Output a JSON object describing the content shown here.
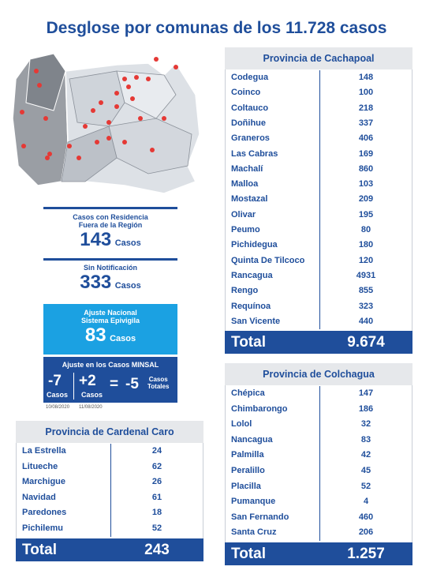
{
  "title": "Desglose por comunas de los 11.728 casos",
  "residencia": {
    "label": [
      "Casos con Residencia",
      "Fuera de la Región"
    ],
    "value": "143",
    "unit": "Casos"
  },
  "sin_notificacion": {
    "label": "Sin Notificación",
    "value": "333",
    "unit": "Casos"
  },
  "ajuste_nacional": {
    "label": [
      "Ajuste Nacional",
      "Sistema Epivigila"
    ],
    "value": "83",
    "unit": "Casos"
  },
  "ajuste_minsal": {
    "label": "Ajuste en los Casos MINSAL",
    "items": [
      {
        "value": "-7",
        "unit": "Casos"
      },
      {
        "value": "+2",
        "unit": "Casos"
      }
    ],
    "equals": "=",
    "result": {
      "value": "-5",
      "unit": [
        "Casos",
        "Totales"
      ]
    },
    "dates": [
      "10/08/2020",
      "11/08/2020"
    ]
  },
  "provinces": [
    {
      "name": "Provincia de Cachapoal",
      "rows": [
        [
          "Codegua",
          "148"
        ],
        [
          "Coinco",
          "100"
        ],
        [
          "Coltauco",
          "218"
        ],
        [
          "Doñihue",
          "337"
        ],
        [
          "Graneros",
          "406"
        ],
        [
          "Las Cabras",
          "169"
        ],
        [
          "Machalí",
          "860"
        ],
        [
          "Malloa",
          "103"
        ],
        [
          "Mostazal",
          "209"
        ],
        [
          "Olivar",
          "195"
        ],
        [
          "Peumo",
          "80"
        ],
        [
          "Pichidegua",
          "180"
        ],
        [
          "Quinta De Tilcoco",
          "120"
        ],
        [
          "Rancagua",
          "4931"
        ],
        [
          "Rengo",
          "855"
        ],
        [
          "Requínoa",
          "323"
        ],
        [
          "San Vicente",
          "440"
        ]
      ],
      "total_label": "Total",
      "total": "9.674"
    },
    {
      "name": "Provincia de Colchagua",
      "rows": [
        [
          "Chépica",
          "147"
        ],
        [
          "Chimbarongo",
          "186"
        ],
        [
          "Lolol",
          "32"
        ],
        [
          "Nancagua",
          "83"
        ],
        [
          "Palmilla",
          "42"
        ],
        [
          "Peralillo",
          "45"
        ],
        [
          "Placilla",
          "52"
        ],
        [
          "Pumanque",
          "4"
        ],
        [
          "San Fernando",
          "460"
        ],
        [
          "Santa Cruz",
          "206"
        ]
      ],
      "total_label": "Total",
      "total": "1.257"
    },
    {
      "name": "Provincia de Cardenal Caro",
      "rows": [
        [
          "La Estrella",
          "24"
        ],
        [
          "Litueche",
          "62"
        ],
        [
          "Marchigue",
          "26"
        ],
        [
          "Navidad",
          "61"
        ],
        [
          "Paredones",
          "18"
        ],
        [
          "Pichilemu",
          "52"
        ]
      ],
      "total_label": "Total",
      "total": "243"
    }
  ]
}
